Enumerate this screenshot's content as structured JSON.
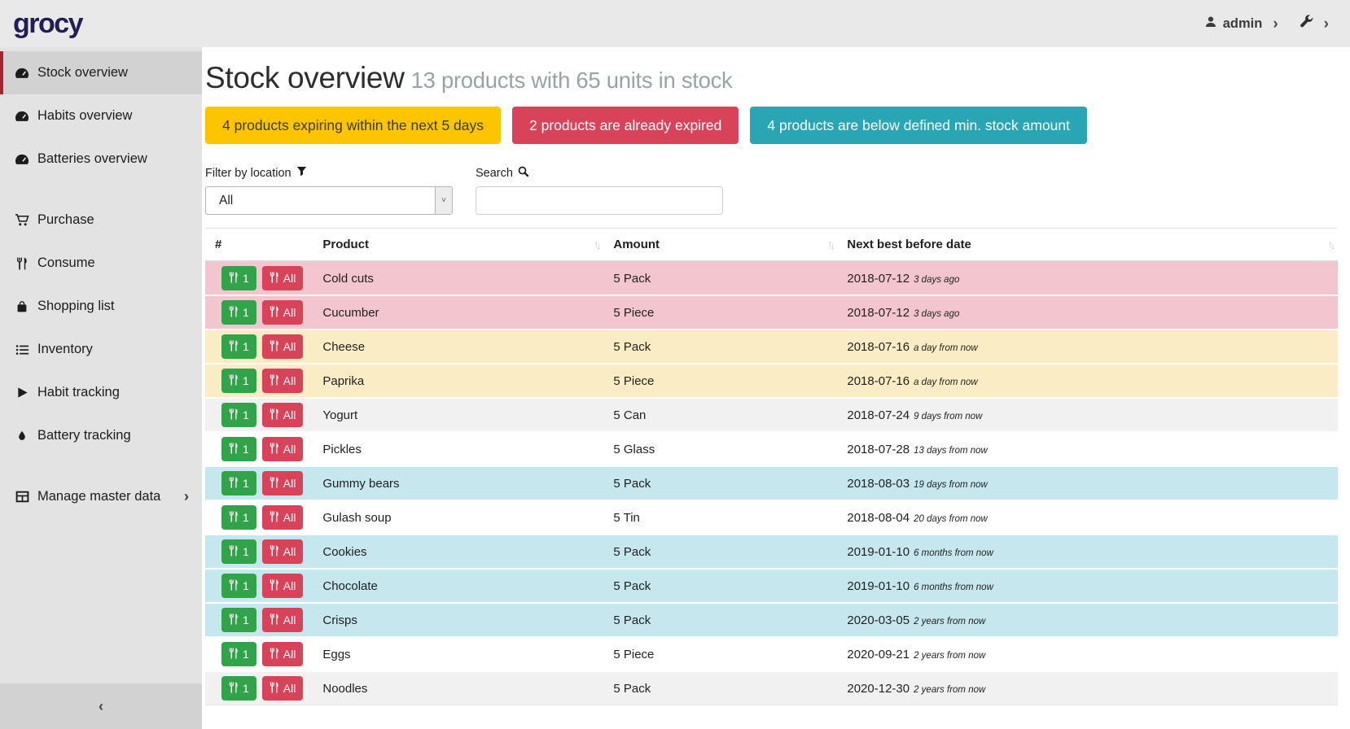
{
  "topbar": {
    "logo": "grocy",
    "user": "admin"
  },
  "sidebar": {
    "groups": [
      {
        "items": [
          {
            "icon": "tachometer-icon",
            "label": "Stock overview",
            "active": true
          },
          {
            "icon": "tachometer-icon",
            "label": "Habits overview",
            "active": false
          },
          {
            "icon": "tachometer-icon",
            "label": "Batteries overview",
            "active": false
          }
        ]
      },
      {
        "items": [
          {
            "icon": "shopping-cart-icon",
            "label": "Purchase",
            "active": false
          },
          {
            "icon": "utensils-icon",
            "label": "Consume",
            "active": false
          },
          {
            "icon": "shopping-bag-icon",
            "label": "Shopping list",
            "active": false
          },
          {
            "icon": "list-icon",
            "label": "Inventory",
            "active": false
          },
          {
            "icon": "play-icon",
            "label": "Habit tracking",
            "active": false
          },
          {
            "icon": "drop-icon",
            "label": "Battery tracking",
            "active": false
          }
        ]
      },
      {
        "items": [
          {
            "icon": "table-icon",
            "label": "Manage master data",
            "active": false,
            "has_chevron": true
          }
        ]
      }
    ],
    "collapse_icon": "chevron-left-icon"
  },
  "header": {
    "title": "Stock overview",
    "subtitle": "13 products with 65 units in stock"
  },
  "alerts": [
    {
      "type": "warning",
      "label": "4 products expiring within the next 5 days",
      "color": "#fcc500"
    },
    {
      "type": "danger",
      "label": "2 products are already expired",
      "color": "#d9435a"
    },
    {
      "type": "info",
      "label": "4 products are below defined min. stock amount",
      "color": "#29a5b4"
    }
  ],
  "filters": {
    "location_label": "Filter by location",
    "location_value": "All",
    "search_label": "Search",
    "search_value": ""
  },
  "table": {
    "columns": [
      {
        "label": "#",
        "sortable": false
      },
      {
        "label": "Product",
        "sortable": true
      },
      {
        "label": "Amount",
        "sortable": true
      },
      {
        "label": "Next best before date",
        "sortable": true
      }
    ],
    "row_buttons": {
      "consume_one_label": "1",
      "consume_all_label": "All"
    },
    "rows": [
      {
        "product": "Cold cuts",
        "amount": "5 Pack",
        "date": "2018-07-12",
        "relative": "3 days ago",
        "status": "expired"
      },
      {
        "product": "Cucumber",
        "amount": "5 Piece",
        "date": "2018-07-12",
        "relative": "3 days ago",
        "status": "expired"
      },
      {
        "product": "Cheese",
        "amount": "5 Pack",
        "date": "2018-07-16",
        "relative": "a day from now",
        "status": "expiring-soon"
      },
      {
        "product": "Paprika",
        "amount": "5 Piece",
        "date": "2018-07-16",
        "relative": "a day from now",
        "status": "expiring-soon"
      },
      {
        "product": "Yogurt",
        "amount": "5 Can",
        "date": "2018-07-24",
        "relative": "9 days from now",
        "status": "none"
      },
      {
        "product": "Pickles",
        "amount": "5 Glass",
        "date": "2018-07-28",
        "relative": "13 days from now",
        "status": "none"
      },
      {
        "product": "Gummy bears",
        "amount": "5 Pack",
        "date": "2018-08-03",
        "relative": "19 days from now",
        "status": "below-min-stock"
      },
      {
        "product": "Gulash soup",
        "amount": "5 Tin",
        "date": "2018-08-04",
        "relative": "20 days from now",
        "status": "none"
      },
      {
        "product": "Cookies",
        "amount": "5 Pack",
        "date": "2019-01-10",
        "relative": "6 months from now",
        "status": "below-min-stock"
      },
      {
        "product": "Chocolate",
        "amount": "5 Pack",
        "date": "2019-01-10",
        "relative": "6 months from now",
        "status": "below-min-stock"
      },
      {
        "product": "Crisps",
        "amount": "5 Pack",
        "date": "2020-03-05",
        "relative": "2 years from now",
        "status": "below-min-stock"
      },
      {
        "product": "Eggs",
        "amount": "5 Piece",
        "date": "2020-09-21",
        "relative": "2 years from now",
        "status": "none"
      },
      {
        "product": "Noodles",
        "amount": "5 Pack",
        "date": "2020-12-30",
        "relative": "2 years from now",
        "status": "none"
      }
    ]
  },
  "colors": {
    "topbar_bg": "#e9e9e9",
    "sidebar_bg": "#e3e3e3",
    "sidebar_active_bg": "#d2d2d2",
    "sidebar_active_border": "#a8232f",
    "logo": "#221d54",
    "subtitle": "#95a5a6",
    "row_expired": "#f3c6cf",
    "row_expiring": "#faecc4",
    "row_below_min": "#c6e7ed",
    "row_striped": "#f1f1f1",
    "consume_one_btn": "#31a348",
    "consume_all_btn": "#d9435a"
  }
}
